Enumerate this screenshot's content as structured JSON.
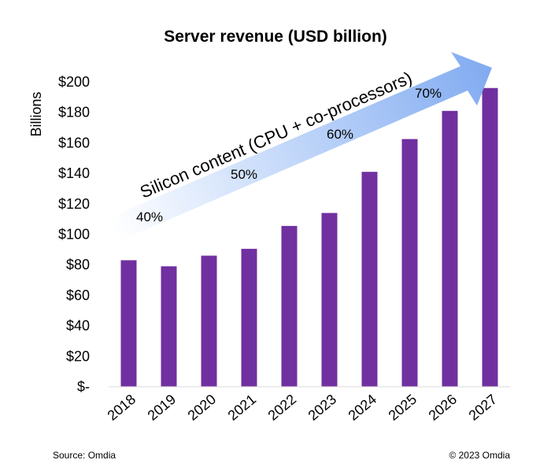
{
  "chart_data": {
    "type": "bar",
    "title": "Server revenue (USD billion)",
    "ylabel": "Billions",
    "xlabel": "",
    "categories": [
      "2018",
      "2019",
      "2020",
      "2021",
      "2022",
      "2023",
      "2024",
      "2025",
      "2026",
      "2027"
    ],
    "values": [
      83,
      79,
      86,
      90.5,
      105.5,
      114,
      141,
      162.5,
      181,
      196
    ],
    "ylim": [
      0,
      200
    ],
    "yticks": [
      0,
      20,
      40,
      60,
      80,
      100,
      120,
      140,
      160,
      180,
      200
    ],
    "ytick_labels": [
      "$-",
      "$20",
      "$40",
      "$60",
      "$80",
      "$100",
      "$120",
      "$140",
      "$160",
      "$180",
      "$200"
    ],
    "bar_color": "#7030A0",
    "grid": false,
    "annotation": {
      "text": "Silicon content (CPU + co-processors)",
      "arrow_color_start": "#ffffff",
      "arrow_color_end": "#7BA7F0",
      "milestones": [
        "40%",
        "50%",
        "60%",
        "70%"
      ]
    }
  },
  "footer": {
    "source": "Source: Omdia",
    "copyright": "© 2023 Omdia"
  }
}
